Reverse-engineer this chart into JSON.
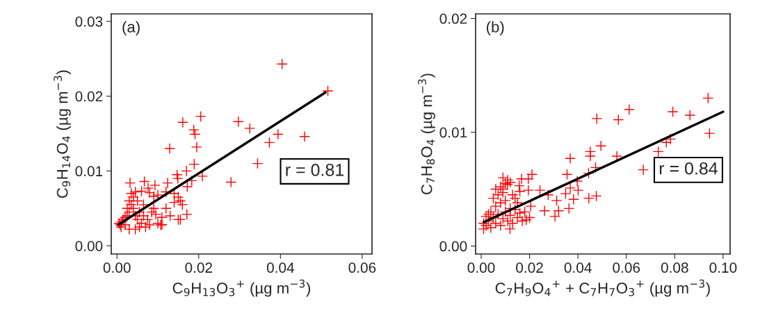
{
  "chart_data": [
    {
      "type": "scatter",
      "title": "(a)",
      "xlabel": "C$_{9}$H$_{13}$O$_{3}$$^{+}$ (µg m$^{−3}$)",
      "ylabel": "C$_{9}$H$_{14}$O$_{4}$ (µg m$^{−3}$)",
      "xlim": [
        -0.0014,
        0.0624
      ],
      "ylim": [
        -0.0011,
        0.031
      ],
      "xticks": [
        {
          "value": 0,
          "label": "0.00"
        },
        {
          "value": 0.02,
          "label": "0.02"
        },
        {
          "value": 0.04,
          "label": "0.04"
        },
        {
          "value": 0.06,
          "label": "0.06"
        }
      ],
      "yticks": [
        {
          "value": 0,
          "label": "0.00"
        },
        {
          "value": 0.01,
          "label": "0.01"
        },
        {
          "value": 0.02,
          "label": "0.02"
        },
        {
          "value": 0.03,
          "label": "0.03"
        }
      ],
      "grid": false,
      "legend": false,
      "annotations": [
        "r = 0.81"
      ],
      "series": [
        {
          "marker": "cross",
          "color": "#ff0000",
          "x": [
            0.0404,
            0.0516,
            0.0205,
            0.0161,
            0.0188,
            0.0191,
            0.0297,
            0.0325,
            0.0394,
            0.0373,
            0.0459,
            0.0195,
            0.0129,
            0.0344,
            0.0189,
            0.017,
            0.0147,
            0.0209,
            0.0183,
            0.0279,
            0.0149,
            0.0172,
            0.0032,
            0.0067,
            0.0093,
            0.0124,
            0.0076,
            0.0005,
            0.001,
            0.0015,
            0.002,
            0.0025,
            0.003,
            0.003,
            0.0035,
            0.004,
            0.0045,
            0.005,
            0.0035,
            0.004,
            0.0045,
            0.005,
            0.0055,
            0.006,
            0.0065,
            0.007,
            0.0075,
            0.008,
            0.0085,
            0.009,
            0.0095,
            0.01,
            0.011,
            0.012,
            0.013,
            0.014,
            0.015,
            0.0155,
            0.016,
            0.014,
            0.012,
            0.01,
            0.009,
            0.008,
            0.006,
            0.0065,
            0.0025,
            0.002,
            0.0012,
            0.0008,
            0.0055,
            0.0045,
            0.003,
            0.011,
            0.015,
            0.0171,
            0.0155,
            0.0107
          ],
          "values": [
            0.0243,
            0.0207,
            0.0173,
            0.0165,
            0.0155,
            0.0149,
            0.0166,
            0.0157,
            0.0149,
            0.0138,
            0.0146,
            0.0132,
            0.013,
            0.011,
            0.0109,
            0.01,
            0.0095,
            0.0093,
            0.0087,
            0.0085,
            0.009,
            0.0079,
            0.0084,
            0.0086,
            0.0081,
            0.0084,
            0.0077,
            0.003,
            0.0025,
            0.0035,
            0.0028,
            0.004,
            0.0045,
            0.006,
            0.007,
            0.0065,
            0.0072,
            0.006,
            0.0055,
            0.005,
            0.004,
            0.0035,
            0.0045,
            0.003,
            0.004,
            0.0025,
            0.0035,
            0.0028,
            0.0045,
            0.005,
            0.0042,
            0.003,
            0.0038,
            0.005,
            0.004,
            0.0058,
            0.0065,
            0.006,
            0.0055,
            0.007,
            0.0072,
            0.0068,
            0.0066,
            0.0071,
            0.0073,
            0.0055,
            0.005,
            0.0038,
            0.0032,
            0.0028,
            0.0025,
            0.0022,
            0.0022,
            0.0028,
            0.0035,
            0.0042,
            0.0035,
            0.0028
          ]
        },
        {
          "type": "line",
          "color": "#000000",
          "x": [
            0.0003,
            0.051
          ],
          "values": [
            0.0028,
            0.0205
          ]
        }
      ]
    },
    {
      "type": "scatter",
      "title": "(b)",
      "xlabel": "C$_{7}$H$_{9}$O$_{4}$$^{+}$ + C$_{7}$H$_{7}$O$_{3}$$^{+}$ (µg m$^{−3}$)",
      "ylabel": "C$_{7}$H$_{8}$O$_{4}$ (µg m$^{−3}$)",
      "xlim": [
        -0.0023,
        0.1029
      ],
      "ylim": [
        -0.0007,
        0.0204
      ],
      "xticks": [
        {
          "value": 0,
          "label": "0.00"
        },
        {
          "value": 0.02,
          "label": "0.02"
        },
        {
          "value": 0.04,
          "label": "0.04"
        },
        {
          "value": 0.06,
          "label": "0.06"
        },
        {
          "value": 0.08,
          "label": "0.08"
        },
        {
          "value": 0.1,
          "label": "0.10"
        }
      ],
      "yticks": [
        {
          "value": 0,
          "label": "0.00"
        },
        {
          "value": 0.01,
          "label": "0.01"
        },
        {
          "value": 0.02,
          "label": "0.02"
        }
      ],
      "grid": false,
      "legend": false,
      "annotations": [
        "r = 0.84"
      ],
      "series": [
        {
          "marker": "cross",
          "color": "#ff0000",
          "x": [
            0.0938,
            0.0792,
            0.0863,
            0.0612,
            0.0478,
            0.0567,
            0.0944,
            0.0782,
            0.0765,
            0.0495,
            0.0451,
            0.0451,
            0.0368,
            0.0561,
            0.067,
            0.0732,
            0.0473,
            0.0355,
            0.0444,
            0.0397,
            0.0368,
            0.0401,
            0.0349,
            0.0382,
            0.0445,
            0.0476,
            0.0312,
            0.0262,
            0.032,
            0.0305,
            0.0363,
            0.0277,
            0.0243,
            0.021,
            0.0195,
            0.0167,
            0.0109,
            0.009,
            0.0195,
            0.0157,
            0.0186,
            0.0119,
            0.0205,
            0.001,
            0.002,
            0.003,
            0.004,
            0.005,
            0.006,
            0.007,
            0.008,
            0.009,
            0.01,
            0.011,
            0.012,
            0.013,
            0.014,
            0.015,
            0.016,
            0.017,
            0.002,
            0.004,
            0.006,
            0.008,
            0.01,
            0.005,
            0.007,
            0.009,
            0.006,
            0.008,
            0.01,
            0.009,
            0.011,
            0.012,
            0.013,
            0.015,
            0.018,
            0.02,
            0.003,
            0.001,
            0.012,
            0.014,
            0.016
          ],
          "values": [
            0.013,
            0.0118,
            0.0115,
            0.012,
            0.0112,
            0.0111,
            0.0099,
            0.0094,
            0.0091,
            0.0088,
            0.0083,
            0.0079,
            0.0077,
            0.0079,
            0.0067,
            0.0083,
            0.0069,
            0.0063,
            0.0064,
            0.0057,
            0.0051,
            0.0049,
            0.0046,
            0.0041,
            0.0042,
            0.0044,
            0.004,
            0.0031,
            0.0031,
            0.0026,
            0.0033,
            0.0045,
            0.0049,
            0.0063,
            0.0059,
            0.0059,
            0.0054,
            0.005,
            0.0049,
            0.0053,
            0.0023,
            0.0015,
            0.0035,
            0.002,
            0.0018,
            0.0022,
            0.0016,
            0.0025,
            0.002,
            0.0028,
            0.0018,
            0.0024,
            0.003,
            0.0022,
            0.0027,
            0.002,
            0.0032,
            0.0025,
            0.0029,
            0.0022,
            0.0026,
            0.003,
            0.0035,
            0.0038,
            0.004,
            0.0042,
            0.0045,
            0.0047,
            0.005,
            0.0052,
            0.0055,
            0.006,
            0.0058,
            0.0056,
            0.0045,
            0.0038,
            0.003,
            0.0025,
            0.0028,
            0.0015,
            0.0033,
            0.0042,
            0.0048
          ]
        },
        {
          "type": "line",
          "color": "#000000",
          "x": [
            0.0011,
            0.1
          ],
          "values": [
            0.0021,
            0.0118
          ]
        }
      ]
    }
  ]
}
